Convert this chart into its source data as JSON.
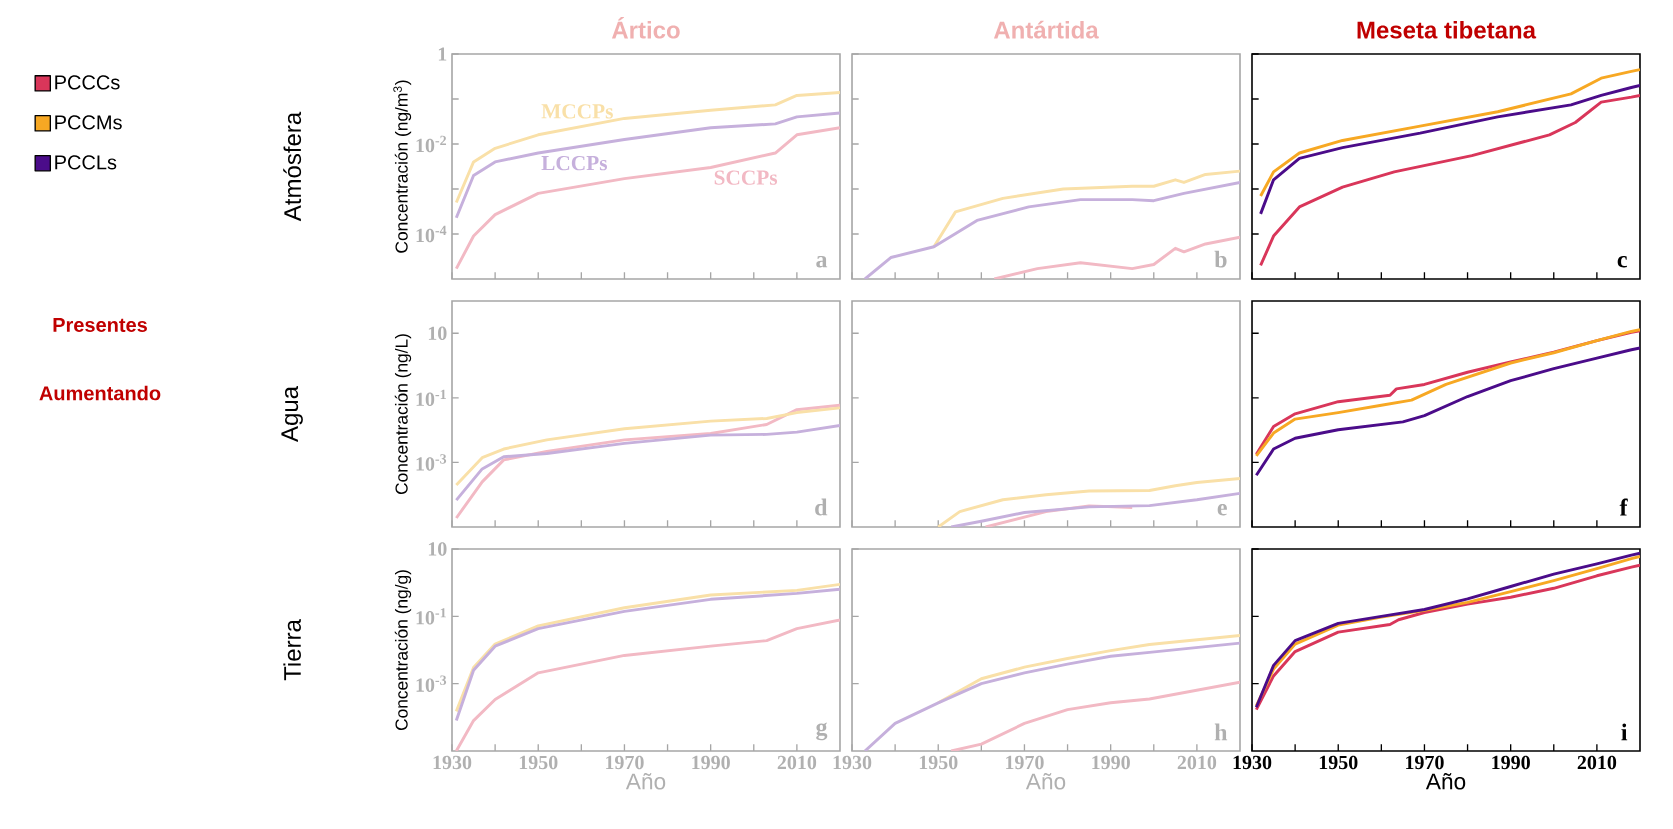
{
  "chart_data": [
    {
      "type": "other",
      "annotations": [
        "Presentes",
        "Aumentando"
      ]
    },
    {
      "type": "line",
      "title": "Ártico",
      "ylabel": "Concentración (ng/m$^{3}$)",
      "log": "y",
      "xlim": [
        1930,
        2020
      ],
      "ylim": [
        1e-05,
        1
      ],
      "xticks": [
        1930,
        {
          "value": 1940,
          "label": null
        },
        1950,
        {
          "value": 1960,
          "label": null
        },
        1970,
        {
          "value": 1980,
          "label": null
        },
        1990,
        {
          "value": 2000,
          "label": null
        },
        2010
      ],
      "yticks": [
        1,
        {
          "value": 0.1,
          "label": null
        },
        {
          "value": 0.01,
          "label": "10$^{-2}$"
        },
        {
          "value": 0.001,
          "label": null
        },
        {
          "value": 0.0001,
          "label": "10$^{-4}$"
        }
      ],
      "tick_labels": "y",
      "annotations": [
        "a",
        "Atmósfera"
      ],
      "series": [
        {
          "name": "SCCPs",
          "color": "#f2b9c4",
          "x": [
            1931,
            1935,
            1940,
            1950,
            1970,
            1990,
            2005,
            2010,
            2020
          ],
          "values": [
            1.7e-05,
            9e-05,
            0.00027,
            0.0008,
            0.0017,
            0.003,
            0.0063,
            0.016,
            0.023
          ]
        },
        {
          "name": "MCCPs",
          "color": "#f9e0a8",
          "x": [
            1931,
            1935,
            1940,
            1950,
            1970,
            1990,
            2005,
            2010,
            2020
          ],
          "values": [
            0.0005,
            0.004,
            0.008,
            0.016,
            0.037,
            0.056,
            0.074,
            0.12,
            0.14
          ]
        },
        {
          "name": "LCCPs",
          "color": "#c6b0dc",
          "x": [
            1931,
            1935,
            1940,
            1950,
            1970,
            1990,
            2005,
            2010,
            2020
          ],
          "values": [
            0.00023,
            0.002,
            0.004,
            0.0063,
            0.0126,
            0.023,
            0.028,
            0.04,
            0.049
          ]
        }
      ]
    },
    {
      "type": "line",
      "title": "Antártida",
      "log": "y",
      "xlim": [
        1930,
        2020
      ],
      "ylim": [
        1e-05,
        1
      ],
      "xticks": [
        1930,
        {
          "value": 1940,
          "label": null
        },
        1950,
        {
          "value": 1960,
          "label": null
        },
        1970,
        {
          "value": 1980,
          "label": null
        },
        1990,
        {
          "value": 2000,
          "label": null
        },
        2010
      ],
      "yticks": [
        {
          "value": 1,
          "label": null
        },
        {
          "value": 0.1,
          "label": null
        },
        {
          "value": 0.01,
          "label": null
        },
        {
          "value": 0.001,
          "label": null
        },
        {
          "value": 0.0001,
          "label": null
        }
      ],
      "tick_labels": false,
      "annotations": [
        "b"
      ],
      "series": [
        {
          "color": "#f2b9c4",
          "x": [
            1963,
            1973,
            1983,
            1995,
            2000,
            2005,
            2007,
            2012,
            2020
          ],
          "values": [
            1e-05,
            1.7e-05,
            2.3e-05,
            1.7e-05,
            2.1e-05,
            4.8e-05,
            4e-05,
            6e-05,
            8.5e-05
          ]
        },
        {
          "color": "#f9e0a8",
          "x": [
            1949,
            1954,
            1965,
            1979,
            1995,
            2000,
            2005,
            2007,
            2012,
            2020
          ],
          "values": [
            5.2e-05,
            0.00031,
            0.00062,
            0.001,
            0.00115,
            0.00115,
            0.0016,
            0.0014,
            0.0021,
            0.0025
          ]
        },
        {
          "color": "#c6b0dc",
          "x": [
            1933,
            1939,
            1949,
            1959,
            1971,
            1983,
            1995,
            2000,
            2007,
            2020
          ],
          "values": [
            1e-05,
            3e-05,
            5.2e-05,
            0.0002,
            0.0004,
            0.00058,
            0.00058,
            0.00055,
            0.0008,
            0.0014
          ]
        }
      ]
    },
    {
      "type": "line",
      "title": "Meseta tibetana",
      "log": "y",
      "xlim": [
        1930,
        2020
      ],
      "ylim": [
        1e-05,
        1
      ],
      "legend": "left",
      "xticks": [
        1930,
        {
          "value": 1940,
          "label": null
        },
        1950,
        {
          "value": 1960,
          "label": null
        },
        1970,
        {
          "value": 1980,
          "label": null
        },
        1990,
        {
          "value": 2000,
          "label": null
        },
        2010
      ],
      "yticks": [
        {
          "value": 1,
          "label": null
        },
        {
          "value": 0.1,
          "label": null
        },
        {
          "value": 0.01,
          "label": null
        },
        {
          "value": 0.001,
          "label": null
        },
        {
          "value": 0.0001,
          "label": null
        }
      ],
      "tick_labels": false,
      "annotations": [
        "c"
      ],
      "series": [
        {
          "name": "PCCCs",
          "color": "#d9365a",
          "x": [
            1932,
            1935,
            1941,
            1951,
            1963,
            1981,
            1999,
            2005,
            2011,
            2018,
            2020
          ],
          "values": [
            2e-05,
            9e-05,
            0.0004,
            0.0011,
            0.0024,
            0.0055,
            0.016,
            0.03,
            0.085,
            0.11,
            0.12
          ]
        },
        {
          "name": "PCCMs",
          "color": "#f7a823",
          "x": [
            1932,
            1935,
            1941,
            1951,
            1969,
            1987,
            2004,
            2011,
            2018,
            2020
          ],
          "values": [
            0.0007,
            0.0024,
            0.0063,
            0.012,
            0.025,
            0.052,
            0.13,
            0.29,
            0.41,
            0.45
          ]
        },
        {
          "name": "PCCLs",
          "color": "#4b0c8a",
          "x": [
            1932,
            1935,
            1941,
            1951,
            1969,
            1987,
            2004,
            2011,
            2018,
            2020
          ],
          "values": [
            0.00028,
            0.0016,
            0.0048,
            0.0083,
            0.0174,
            0.04,
            0.074,
            0.12,
            0.18,
            0.2
          ]
        }
      ]
    },
    {
      "type": "line",
      "ylabel": "Concentración (ng/L)",
      "log": "y",
      "xlim": [
        1930,
        2020
      ],
      "ylim": [
        1e-05,
        100
      ],
      "xticks": [
        1930,
        {
          "value": 1940,
          "label": null
        },
        1950,
        {
          "value": 1960,
          "label": null
        },
        1970,
        {
          "value": 1980,
          "label": null
        },
        1990,
        {
          "value": 2000,
          "label": null
        },
        2010
      ],
      "yticks": [
        10,
        {
          "value": 0.1,
          "label": "10$^{-1}$"
        },
        {
          "value": 0.001,
          "label": "10$^{-3}$"
        }
      ],
      "tick_labels": "y",
      "annotations": [
        "d",
        "Agua"
      ],
      "series": [
        {
          "color": "#f2b9c4",
          "x": [
            1931,
            1937,
            1942,
            1952,
            1970,
            1990,
            2003,
            2010,
            2020
          ],
          "values": [
            1.9e-05,
            0.00025,
            0.0012,
            0.0022,
            0.005,
            0.0079,
            0.015,
            0.043,
            0.059
          ]
        },
        {
          "color": "#f9e0a8",
          "x": [
            1931,
            1937,
            1942,
            1952,
            1970,
            1990,
            2003,
            2010,
            2020
          ],
          "values": [
            0.0002,
            0.0014,
            0.0026,
            0.005,
            0.011,
            0.019,
            0.023,
            0.035,
            0.049
          ]
        },
        {
          "color": "#c6b0dc",
          "x": [
            1931,
            1937,
            1942,
            1952,
            1970,
            1990,
            2003,
            2010,
            2020
          ],
          "values": [
            6.8e-05,
            0.00063,
            0.0015,
            0.0019,
            0.0039,
            0.007,
            0.0074,
            0.0087,
            0.014
          ]
        }
      ]
    },
    {
      "type": "line",
      "log": "y",
      "xlim": [
        1930,
        2020
      ],
      "ylim": [
        1e-05,
        100
      ],
      "xticks": [
        1930,
        {
          "value": 1940,
          "label": null
        },
        1950,
        {
          "value": 1960,
          "label": null
        },
        1970,
        {
          "value": 1980,
          "label": null
        },
        1990,
        {
          "value": 2000,
          "label": null
        },
        2010
      ],
      "yticks": [
        {
          "value": 10,
          "label": null
        },
        {
          "value": 0.1,
          "label": null
        },
        {
          "value": 0.001,
          "label": null
        }
      ],
      "tick_labels": false,
      "annotations": [
        "e"
      ],
      "series": [
        {
          "color": "#f2b9c4",
          "x": [
            1961,
            1975,
            1985,
            1995
          ],
          "values": [
            1e-05,
            3e-05,
            4.5e-05,
            4e-05
          ]
        },
        {
          "color": "#f9e0a8",
          "x": [
            1950,
            1955,
            1965,
            1975,
            1985,
            1999,
            2005,
            2010,
            2020
          ],
          "values": [
            1e-05,
            3e-05,
            7e-05,
            0.0001,
            0.00013,
            0.000135,
            0.00019,
            0.00024,
            0.00032
          ]
        },
        {
          "color": "#c6b0dc",
          "x": [
            1953,
            1960,
            1970,
            1985,
            1999,
            2010,
            2020
          ],
          "values": [
            1e-05,
            1.5e-05,
            2.8e-05,
            4.2e-05,
            4.6e-05,
            7e-05,
            0.00011
          ]
        }
      ]
    },
    {
      "type": "line",
      "log": "y",
      "xlim": [
        1930,
        2020
      ],
      "ylim": [
        1e-05,
        100
      ],
      "xticks": [
        1930,
        {
          "value": 1940,
          "label": null
        },
        1950,
        {
          "value": 1960,
          "label": null
        },
        1970,
        {
          "value": 1980,
          "label": null
        },
        1990,
        {
          "value": 2000,
          "label": null
        },
        2010
      ],
      "yticks": [
        {
          "value": 10,
          "label": null
        },
        {
          "value": 0.1,
          "label": null
        },
        {
          "value": 0.001,
          "label": null
        }
      ],
      "tick_labels": false,
      "annotations": [
        "f"
      ],
      "series": [
        {
          "color": "#d9365a",
          "x": [
            1931,
            1935,
            1940,
            1950,
            1962,
            1963.5,
            1970,
            1980,
            1990,
            2000,
            2010,
            2018,
            2020
          ],
          "values": [
            0.0018,
            0.013,
            0.032,
            0.076,
            0.12,
            0.19,
            0.26,
            0.62,
            1.3,
            2.6,
            5.9,
            10.8,
            12
          ]
        },
        {
          "color": "#f7a823",
          "x": [
            1931,
            1935,
            1940,
            1950,
            1960,
            1967,
            1975,
            1990,
            2000,
            2010,
            2018,
            2020
          ],
          "values": [
            0.0016,
            0.0081,
            0.022,
            0.035,
            0.059,
            0.085,
            0.26,
            1.2,
            2.5,
            5.9,
            11.4,
            13
          ]
        },
        {
          "color": "#4b0c8a",
          "x": [
            1931,
            1935,
            1940,
            1950,
            1965,
            1970,
            1980,
            1990,
            2000,
            2010,
            2018,
            2020
          ],
          "values": [
            0.0004,
            0.0026,
            0.0056,
            0.0103,
            0.018,
            0.028,
            0.11,
            0.34,
            0.8,
            1.7,
            3.1,
            3.5
          ]
        }
      ]
    },
    {
      "type": "line",
      "xlabel": "Año",
      "ylabel": "Concentración (ng/g)",
      "log": "y",
      "xlim": [
        1930,
        2020
      ],
      "ylim": [
        1e-05,
        10
      ],
      "xticks": [
        1930,
        {
          "value": 1940,
          "label": null
        },
        1950,
        {
          "value": 1960,
          "label": null
        },
        1970,
        {
          "value": 1980,
          "label": null
        },
        1990,
        {
          "value": 2000,
          "label": null
        },
        2010
      ],
      "yticks": [
        10,
        {
          "value": 0.1,
          "label": "10$^{-1}$"
        },
        {
          "value": 0.001,
          "label": "10$^{-3}$"
        }
      ],
      "annotations": [
        "g",
        "Tierra"
      ],
      "series": [
        {
          "color": "#f2b9c4",
          "x": [
            1931,
            1935,
            1940,
            1950,
            1970,
            1990,
            2003,
            2010,
            2020
          ],
          "values": [
            1e-05,
            8e-05,
            0.00034,
            0.0021,
            0.0069,
            0.013,
            0.019,
            0.043,
            0.078
          ]
        },
        {
          "color": "#f9e0a8",
          "x": [
            1931,
            1935,
            1940,
            1950,
            1970,
            1990,
            2010,
            2020
          ],
          "values": [
            0.00015,
            0.003,
            0.015,
            0.052,
            0.18,
            0.43,
            0.59,
            0.89
          ]
        },
        {
          "color": "#c6b0dc",
          "x": [
            1931,
            1935,
            1940,
            1950,
            1970,
            1990,
            2010,
            2020
          ],
          "values": [
            8e-05,
            0.0025,
            0.013,
            0.043,
            0.14,
            0.32,
            0.48,
            0.64
          ]
        }
      ]
    },
    {
      "type": "line",
      "xlabel": "Año",
      "log": "y",
      "xlim": [
        1930,
        2020
      ],
      "ylim": [
        1e-05,
        10
      ],
      "xticks": [
        1930,
        {
          "value": 1940,
          "label": null
        },
        1950,
        {
          "value": 1960,
          "label": null
        },
        1970,
        {
          "value": 1980,
          "label": null
        },
        1990,
        {
          "value": 2000,
          "label": null
        },
        2010
      ],
      "yticks": [
        {
          "value": 10,
          "label": null
        },
        {
          "value": 0.1,
          "label": null
        },
        {
          "value": 0.001,
          "label": null
        }
      ],
      "tick_labels": "x",
      "annotations": [
        "h"
      ],
      "series": [
        {
          "color": "#f2b9c4",
          "x": [
            1953,
            1960,
            1970,
            1980,
            1990,
            1999,
            2020
          ],
          "values": [
            1e-05,
            1.6e-05,
            6.6e-05,
            0.00017,
            0.00027,
            0.00035,
            0.0011
          ]
        },
        {
          "color": "#f9e0a8",
          "x": [
            1950,
            1960,
            1970,
            1980,
            1990,
            1999,
            2020
          ],
          "values": [
            0.00027,
            0.0014,
            0.0031,
            0.0056,
            0.0096,
            0.0145,
            0.027
          ]
        },
        {
          "color": "#c6b0dc",
          "x": [
            1933,
            1940,
            1950,
            1960,
            1970,
            1980,
            1990,
            1999,
            2020
          ],
          "values": [
            1e-05,
            6.6e-05,
            0.00027,
            0.001,
            0.0021,
            0.0038,
            0.0065,
            0.0085,
            0.016
          ]
        }
      ]
    },
    {
      "type": "line",
      "xlabel": "Año",
      "log": "y",
      "xlim": [
        1930,
        2020
      ],
      "ylim": [
        1e-05,
        10
      ],
      "xticks": [
        1930,
        {
          "value": 1940,
          "label": null
        },
        1950,
        {
          "value": 1960,
          "label": null
        },
        1970,
        {
          "value": 1980,
          "label": null
        },
        1990,
        {
          "value": 2000,
          "label": null
        },
        2010
      ],
      "yticks": [
        {
          "value": 10,
          "label": null
        },
        {
          "value": 0.1,
          "label": null
        },
        {
          "value": 0.001,
          "label": null
        }
      ],
      "tick_labels": "x",
      "annotations": [
        "i"
      ],
      "series": [
        {
          "color": "#d9365a",
          "x": [
            1931,
            1935,
            1940,
            1950,
            1962,
            1964,
            1970,
            1980,
            1990,
            2000,
            2010,
            2018,
            2020
          ],
          "values": [
            0.00017,
            0.0017,
            0.009,
            0.034,
            0.057,
            0.079,
            0.13,
            0.23,
            0.37,
            0.68,
            1.6,
            2.9,
            3.3
          ]
        },
        {
          "color": "#f7a823",
          "x": [
            1931,
            1935,
            1940,
            1950,
            1960,
            1970,
            1980,
            1990,
            2000,
            2010,
            2018,
            2020
          ],
          "values": [
            0.00022,
            0.0027,
            0.015,
            0.055,
            0.095,
            0.15,
            0.26,
            0.54,
            1.15,
            2.6,
            5.2,
            6
          ]
        },
        {
          "color": "#4b0c8a",
          "x": [
            1931,
            1935,
            1940,
            1950,
            1960,
            1970,
            1980,
            1990,
            2000,
            2010,
            2018,
            2020
          ],
          "values": [
            0.0002,
            0.0035,
            0.019,
            0.062,
            0.1,
            0.16,
            0.33,
            0.77,
            1.8,
            3.6,
            6.6,
            7.5
          ]
        }
      ]
    }
  ]
}
